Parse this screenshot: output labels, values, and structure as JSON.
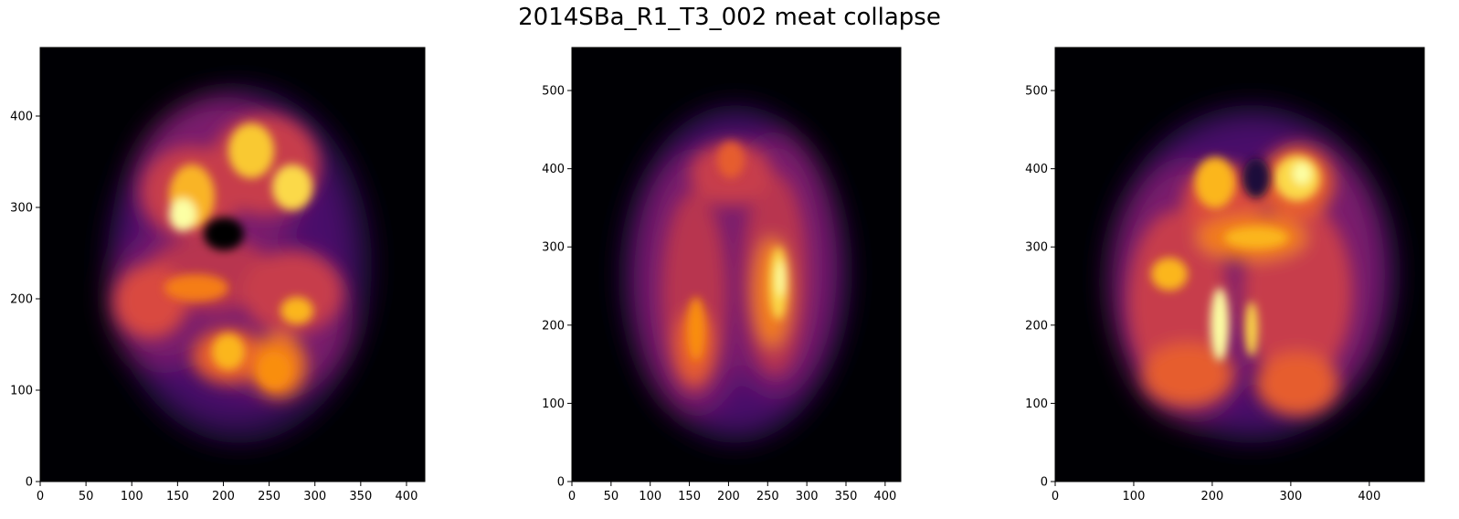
{
  "title": "2014SBa_R1_T3_002 meat collapse",
  "colormap": "inferno",
  "background_color": "#000004",
  "panels": [
    {
      "name": "panel-1",
      "xlim": [
        0,
        420
      ],
      "ylim": [
        0,
        475
      ],
      "xticks": [
        0,
        50,
        100,
        150,
        200,
        250,
        300,
        350,
        400
      ],
      "yticks": [
        0,
        100,
        200,
        300,
        400
      ]
    },
    {
      "name": "panel-2",
      "xlim": [
        0,
        420
      ],
      "ylim": [
        0,
        555
      ],
      "xticks": [
        0,
        50,
        100,
        150,
        200,
        250,
        300,
        350,
        400
      ],
      "yticks": [
        0,
        100,
        200,
        300,
        400,
        500
      ]
    },
    {
      "name": "panel-3",
      "xlim": [
        0,
        470
      ],
      "ylim": [
        0,
        555
      ],
      "xticks": [
        0,
        100,
        200,
        300,
        400
      ],
      "yticks": [
        0,
        100,
        200,
        300,
        400,
        500
      ]
    }
  ]
}
